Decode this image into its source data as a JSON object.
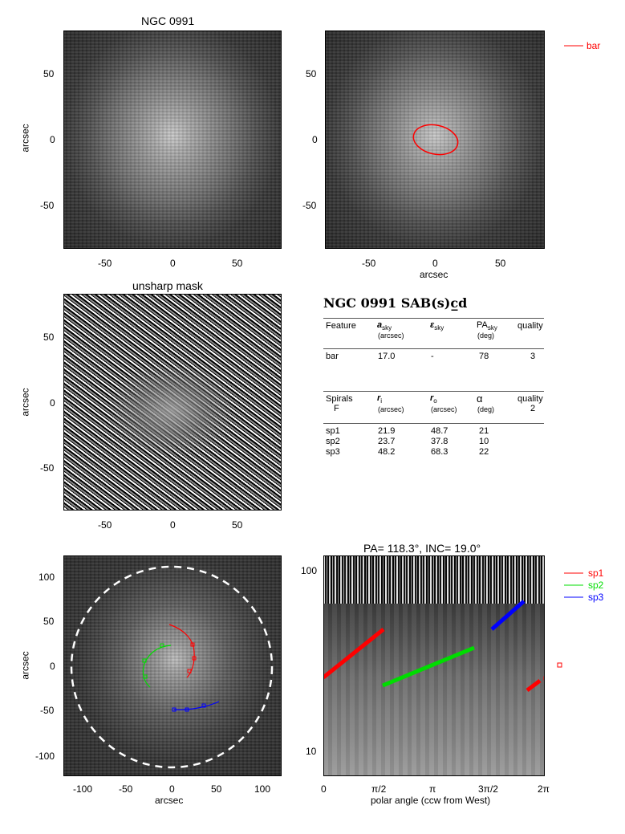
{
  "panel1": {
    "title": "NGC 0991",
    "ylabel": "arcsec",
    "yticks": [
      "50",
      "0",
      "-50"
    ],
    "xticks": [
      "-50",
      "0",
      "50"
    ]
  },
  "panel2": {
    "xlabel": "arcsec",
    "yticks": [
      "50",
      "0",
      "-50"
    ],
    "xticks": [
      "-50",
      "0",
      "50"
    ],
    "legend": [
      {
        "label": "bar",
        "color": "#ff0000"
      }
    ]
  },
  "panel3": {
    "title": "unsharp mask",
    "ylabel": "arcsec",
    "yticks": [
      "50",
      "0",
      "-50"
    ],
    "xticks": [
      "-50",
      "0",
      "50"
    ]
  },
  "table": {
    "heading": "NGC 0991  SAB(s)c̲d",
    "bar_header": {
      "feature": "Feature",
      "a": "a",
      "a_sub": "sky",
      "a_unit": "(arcsec)",
      "e": "ε",
      "e_sub": "sky",
      "pa": "PA",
      "pa_sub": "sky",
      "pa_unit": "(deg)",
      "quality": "quality"
    },
    "bar_row": {
      "name": "bar",
      "a": "17.0",
      "e": "-",
      "pa": "78",
      "quality": "3"
    },
    "spiral_header": {
      "label": "Spirals",
      "label2": "F",
      "ri": "r",
      "ri_sub": "i",
      "ri_unit": "(arcsec)",
      "ro": "r",
      "ro_sub": "o",
      "ro_unit": "(arcsec)",
      "alpha": "α",
      "alpha_unit": "(deg)",
      "quality": "quality",
      "quality_val": "2"
    },
    "spiral_rows": [
      {
        "name": "sp1",
        "ri": "21.9",
        "ro": "48.7",
        "alpha": "21"
      },
      {
        "name": "sp2",
        "ri": "23.7",
        "ro": "37.8",
        "alpha": "10"
      },
      {
        "name": "sp3",
        "ri": "48.2",
        "ro": "68.3",
        "alpha": "22"
      }
    ]
  },
  "panel4": {
    "ylabel": "arcsec",
    "xlabel": "arcsec",
    "yticks": [
      "100",
      "50",
      "0",
      "-50",
      "-100"
    ],
    "xticks": [
      "-100",
      "-50",
      "0",
      "50",
      "100"
    ]
  },
  "panel5": {
    "title": "PA= 118.3°, INC=  19.0°",
    "xlabel": "polar angle (ccw from West)",
    "yticks": [
      "100",
      "10"
    ],
    "xticks": [
      "0",
      "π/2",
      "π",
      "3π/2",
      "2π"
    ],
    "legend": [
      {
        "label": "sp1",
        "color": "#ff0000"
      },
      {
        "label": "sp2",
        "color": "#00dd00"
      },
      {
        "label": "sp3",
        "color": "#0000ff"
      }
    ]
  },
  "colors": {
    "sp1": "#ff0000",
    "sp2": "#00dd00",
    "sp3": "#0000ff",
    "bar": "#ff0000"
  }
}
